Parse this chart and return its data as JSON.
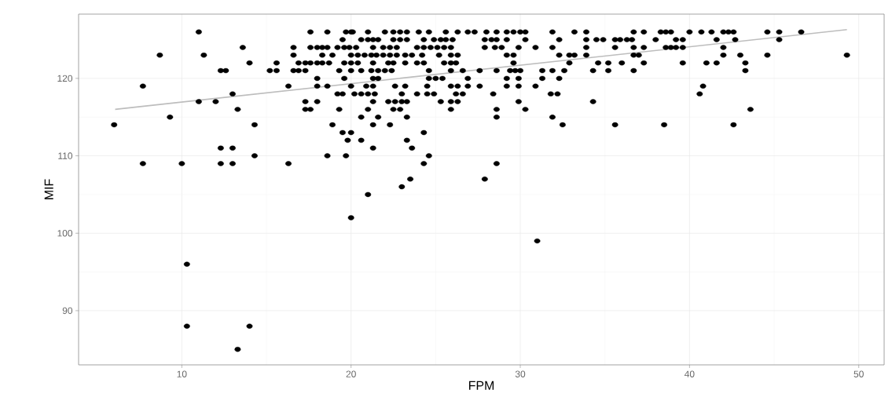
{
  "chart_data": {
    "type": "scatter",
    "xlabel": "FPM",
    "ylabel": "MIF",
    "xlim": [
      3.9,
      51.5
    ],
    "ylim": [
      83.0,
      128.3
    ],
    "xticks": [
      10,
      20,
      30,
      40,
      50
    ],
    "yticks": [
      90,
      100,
      110,
      120
    ],
    "grid": true,
    "marker": "circle",
    "series": [
      {
        "color": "#000000",
        "x": [
          11.0,
          17.6,
          18.6,
          19.7,
          20.0,
          20.1,
          21.0,
          22.0,
          22.5,
          22.9,
          23.3,
          24.0,
          24.6,
          25.6,
          26.3,
          26.9,
          27.3,
          28.0,
          28.6,
          29.2,
          29.6,
          30.0,
          30.3,
          31.9,
          33.2,
          33.9,
          36.7,
          37.3,
          38.3,
          38.6,
          38.9,
          40.0,
          40.7,
          41.3,
          42.0,
          42.3,
          42.6,
          44.6,
          45.3,
          46.6,
          19.5,
          20.6,
          21.0,
          21.3,
          21.6,
          22.5,
          22.9,
          23.3,
          24.3,
          24.9,
          25.3,
          25.6,
          26.0,
          27.9,
          28.3,
          28.6,
          29.2,
          30.3,
          32.3,
          33.9,
          34.5,
          34.9,
          35.6,
          35.9,
          36.3,
          36.6,
          38.0,
          39.2,
          39.6,
          41.6,
          42.7,
          45.3,
          13.6,
          16.6,
          17.6,
          18.0,
          18.3,
          18.6,
          19.2,
          19.6,
          19.9,
          20.3,
          21.3,
          21.9,
          22.3,
          22.7,
          23.9,
          24.3,
          24.7,
          25.1,
          25.5,
          25.9,
          27.9,
          28.5,
          28.9,
          29.9,
          30.9,
          31.9,
          33.9,
          35.6,
          36.7,
          37.3,
          38.6,
          38.9,
          39.2,
          39.6,
          42.0,
          8.7,
          11.3,
          16.6,
          18.3,
          18.9,
          20.0,
          20.4,
          20.8,
          21.2,
          21.5,
          21.9,
          22.3,
          22.7,
          23.2,
          23.6,
          24.2,
          25.2,
          25.9,
          26.3,
          29.2,
          29.6,
          32.3,
          32.9,
          33.2,
          33.9,
          36.7,
          37.0,
          42.0,
          43.0,
          44.6,
          49.3,
          14.0,
          15.6,
          16.9,
          17.3,
          17.6,
          18.0,
          18.3,
          18.7,
          19.6,
          20.0,
          20.4,
          21.3,
          22.2,
          22.5,
          23.2,
          23.9,
          24.3,
          25.5,
          25.9,
          26.2,
          29.6,
          32.9,
          34.6,
          35.2,
          36.0,
          37.3,
          39.6,
          41.0,
          41.6,
          43.3,
          12.3,
          12.6,
          15.2,
          15.6,
          16.6,
          16.9,
          17.3,
          19.3,
          20.0,
          20.6,
          21.2,
          21.6,
          22.0,
          22.4,
          24.6,
          25.9,
          26.6,
          27.6,
          28.6,
          29.4,
          29.7,
          30.0,
          31.3,
          31.9,
          32.6,
          34.3,
          35.2,
          36.7,
          43.3,
          18.0,
          19.6,
          21.3,
          21.6,
          24.6,
          25.0,
          25.4,
          26.9,
          29.2,
          29.9,
          31.3,
          32.3,
          7.7,
          16.3,
          18.0,
          18.6,
          20.0,
          20.9,
          21.3,
          22.6,
          23.2,
          24.5,
          25.9,
          26.3,
          26.9,
          27.6,
          29.2,
          29.9,
          30.9,
          40.8,
          13.0,
          19.2,
          19.5,
          20.2,
          20.6,
          21.0,
          21.4,
          23.0,
          23.9,
          24.5,
          24.9,
          26.2,
          26.6,
          28.4,
          31.8,
          32.2,
          40.6,
          11.0,
          12.0,
          17.3,
          18.0,
          21.3,
          22.2,
          22.6,
          23.0,
          23.3,
          25.3,
          25.9,
          26.3,
          29.9,
          34.3,
          13.3,
          17.3,
          17.6,
          19.3,
          21.0,
          22.5,
          22.9,
          25.9,
          28.6,
          30.3,
          43.6,
          9.3,
          20.6,
          21.6,
          23.3,
          28.6,
          31.9,
          6.0,
          14.3,
          18.9,
          21.3,
          22.3,
          32.5,
          35.6,
          38.5,
          42.6,
          19.5,
          20.0,
          24.3,
          19.8,
          20.6,
          23.3,
          12.3,
          13.0,
          21.3,
          23.6,
          14.3,
          18.6,
          19.7,
          24.6,
          7.7,
          10.0,
          12.3,
          13.0,
          16.3,
          24.3,
          28.6,
          23.5,
          27.9,
          23.0,
          21.0,
          20.0,
          31.0,
          10.3,
          10.3,
          14.0,
          13.3
        ],
        "values": [
          126,
          126,
          126,
          126,
          126,
          126,
          126,
          126,
          126,
          126,
          126,
          126,
          126,
          126,
          126,
          126,
          126,
          126,
          126,
          126,
          126,
          126,
          126,
          126,
          126,
          126,
          126,
          126,
          126,
          126,
          126,
          126,
          126,
          126,
          126,
          126,
          126,
          126,
          126,
          126,
          125,
          125,
          125,
          125,
          125,
          125,
          125,
          125,
          125,
          125,
          125,
          125,
          125,
          125,
          125,
          125,
          125,
          125,
          125,
          125,
          125,
          125,
          125,
          125,
          125,
          125,
          125,
          125,
          125,
          125,
          125,
          125,
          124,
          124,
          124,
          124,
          124,
          124,
          124,
          124,
          124,
          124,
          124,
          124,
          124,
          124,
          124,
          124,
          124,
          124,
          124,
          124,
          124,
          124,
          124,
          124,
          124,
          124,
          124,
          124,
          124,
          124,
          124,
          124,
          124,
          124,
          124,
          123,
          123,
          123,
          123,
          123,
          123,
          123,
          123,
          123,
          123,
          123,
          123,
          123,
          123,
          123,
          123,
          123,
          123,
          123,
          123,
          123,
          123,
          123,
          123,
          123,
          123,
          123,
          123,
          123,
          123,
          123,
          122,
          122,
          122,
          122,
          122,
          122,
          122,
          122,
          122,
          122,
          122,
          122,
          122,
          122,
          122,
          122,
          122,
          122,
          122,
          122,
          122,
          122,
          122,
          122,
          122,
          122,
          122,
          122,
          122,
          122,
          121,
          121,
          121,
          121,
          121,
          121,
          121,
          121,
          121,
          121,
          121,
          121,
          121,
          121,
          121,
          121,
          121,
          121,
          121,
          121,
          121,
          121,
          121,
          121,
          121,
          121,
          121,
          121,
          121,
          120,
          120,
          120,
          120,
          120,
          120,
          120,
          120,
          120,
          120,
          120,
          120,
          119,
          119,
          119,
          119,
          119,
          119,
          119,
          119,
          119,
          119,
          119,
          119,
          119,
          119,
          119,
          119,
          119,
          119,
          118,
          118,
          118,
          118,
          118,
          118,
          118,
          118,
          118,
          118,
          118,
          118,
          118,
          118,
          118,
          118,
          118,
          117,
          117,
          117,
          117,
          117,
          117,
          117,
          117,
          117,
          117,
          117,
          117,
          117,
          117,
          116,
          116,
          116,
          116,
          116,
          116,
          116,
          116,
          116,
          116,
          116,
          115,
          115,
          115,
          115,
          115,
          115,
          114,
          114,
          114,
          114,
          114,
          114,
          114,
          114,
          114,
          113,
          113,
          113,
          112,
          112,
          112,
          111,
          111,
          111,
          111,
          110,
          110,
          110,
          110,
          109,
          109,
          109,
          109,
          109,
          109,
          109,
          107,
          107,
          106,
          105,
          102,
          99,
          96,
          88,
          88,
          85
        ]
      },
      {
        "type": "line",
        "color": "#bdbdbd",
        "marker": "none",
        "x": [
          6.06,
          49.3
        ],
        "values": [
          116.0,
          126.3
        ]
      }
    ]
  }
}
